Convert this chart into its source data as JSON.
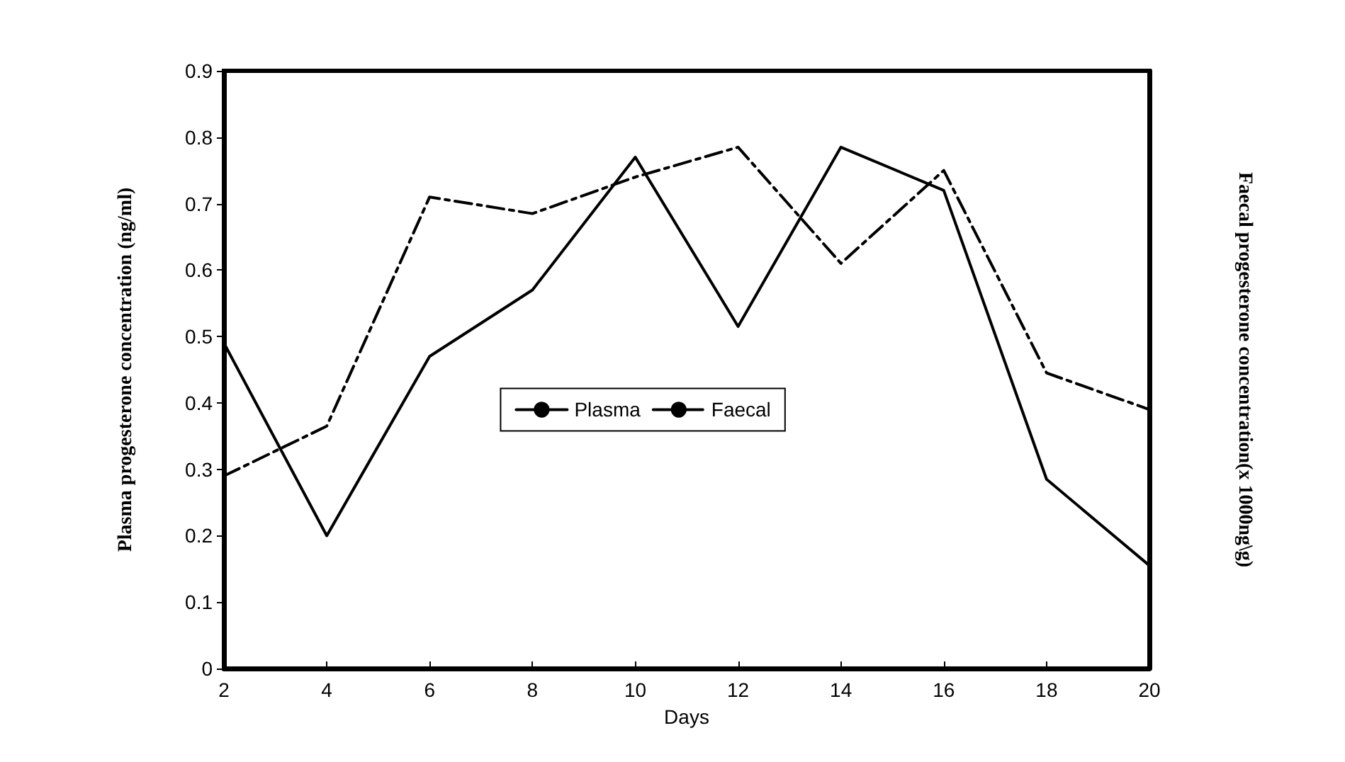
{
  "chart_data": {
    "type": "line",
    "xlabel": "Days",
    "ylabel": "Plasma progesterone concentration (ng/ml)",
    "y2label": "Faecal progesterone concentration(x 1000ng\\g)",
    "x": [
      2,
      4,
      6,
      8,
      10,
      12,
      14,
      16,
      18,
      20
    ],
    "series": [
      {
        "name": "Plasma",
        "color": "#000000",
        "line_style": "solid",
        "values": [
          0.49,
          0.2,
          0.47,
          0.57,
          0.77,
          0.515,
          0.785,
          0.72,
          0.285,
          0.155
        ]
      },
      {
        "name": "Faecal",
        "color": "#000000",
        "line_style": "dashed",
        "values": [
          0.29,
          0.365,
          0.71,
          0.685,
          0.74,
          0.785,
          0.61,
          0.75,
          0.445,
          0.39
        ]
      }
    ],
    "xlim": [
      2,
      20
    ],
    "xticks": [
      2,
      4,
      6,
      8,
      10,
      12,
      14,
      16,
      18,
      20
    ],
    "ylim": [
      0,
      0.9
    ],
    "yticks": [
      0,
      0.1,
      0.2,
      0.3,
      0.4,
      0.5,
      0.6,
      0.7,
      0.8,
      0.9
    ],
    "grid": false,
    "legend": "center",
    "marker": "none"
  }
}
